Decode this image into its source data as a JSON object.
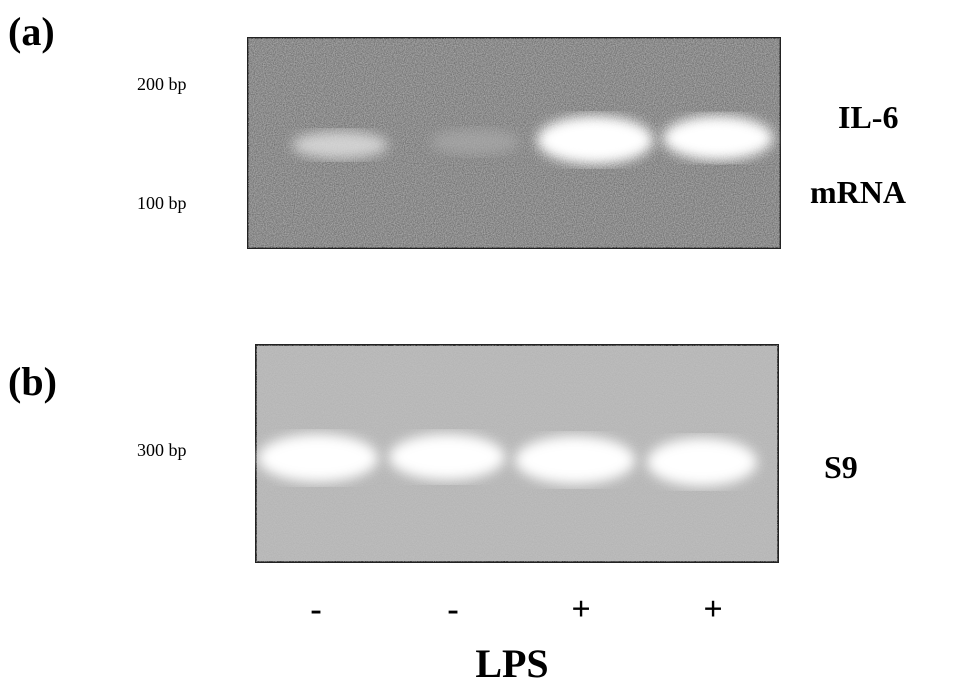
{
  "panels": [
    {
      "label": "(a)",
      "markers": [
        "200 bp",
        "100 bp"
      ],
      "labels": [
        "IL-6",
        "mRNA"
      ]
    },
    {
      "label": "(b)",
      "markers": [
        "300 bp"
      ],
      "labels": [
        "S9"
      ]
    }
  ],
  "lanes": [
    "-",
    "-",
    "+",
    "+"
  ],
  "axis_label": "LPS"
}
